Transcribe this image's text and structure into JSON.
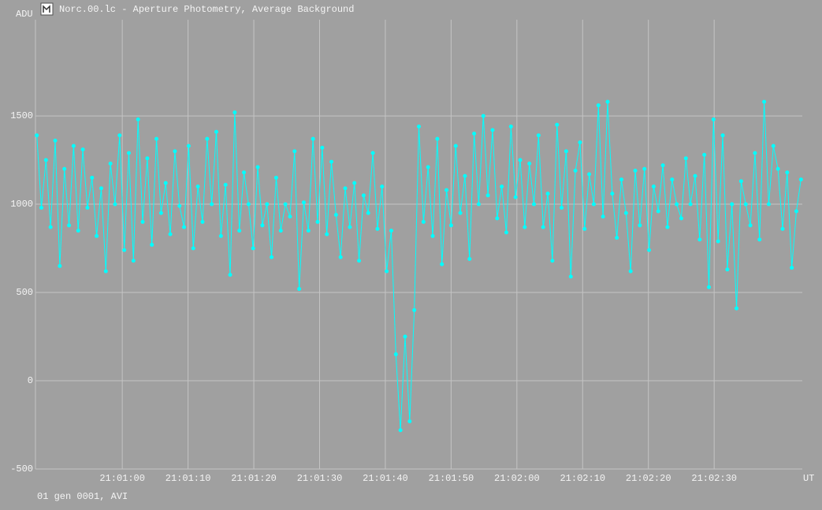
{
  "window_title": "Norc.00.lc - Aperture Photometry, Average Background",
  "status_text": "01 gen 0001, AVI",
  "chart_data": {
    "type": "line",
    "y_label": "ADU",
    "x_label": "UT",
    "color": "#00ffff",
    "markers": true,
    "grid": true,
    "xlim": [
      75646.8,
      75763.4
    ],
    "ylim": [
      -500,
      2045
    ],
    "yticks": [
      -500,
      0,
      500,
      1000,
      1500
    ],
    "xticks": [
      {
        "value": 75660,
        "label": "21:01:00"
      },
      {
        "value": 75670,
        "label": "21:01:10"
      },
      {
        "value": 75680,
        "label": "21:01:20"
      },
      {
        "value": 75690,
        "label": "21:01:30"
      },
      {
        "value": 75700,
        "label": "21:01:40"
      },
      {
        "value": 75710,
        "label": "21:01:50"
      },
      {
        "value": 75720,
        "label": "21:02:00"
      },
      {
        "value": 75730,
        "label": "21:02:10"
      },
      {
        "value": 75740,
        "label": "21:02:20"
      },
      {
        "value": 75750,
        "label": "21:02:30"
      }
    ],
    "x": [
      75647,
      75647.7,
      75648.4,
      75649.1,
      75649.8,
      75650.5,
      75651.2,
      75651.9,
      75652.6,
      75653.3,
      75654,
      75654.7,
      75655.4,
      75656.1,
      75656.8,
      75657.5,
      75658.2,
      75658.9,
      75659.6,
      75660.3,
      75661,
      75661.7,
      75662.4,
      75663.1,
      75663.8,
      75664.5,
      75665.2,
      75665.9,
      75666.6,
      75667.3,
      75668,
      75668.7,
      75669.4,
      75670.1,
      75670.8,
      75671.5,
      75672.2,
      75672.9,
      75673.6,
      75674.3,
      75675,
      75675.7,
      75676.4,
      75677.1,
      75677.8,
      75678.5,
      75679.2,
      75679.9,
      75680.6,
      75681.3,
      75682,
      75682.7,
      75683.4,
      75684.1,
      75684.8,
      75685.5,
      75686.2,
      75686.9,
      75687.6,
      75688.3,
      75689,
      75689.7,
      75690.4,
      75691.1,
      75691.8,
      75692.5,
      75693.2,
      75693.9,
      75694.6,
      75695.3,
      75696,
      75696.7,
      75697.4,
      75698.1,
      75698.8,
      75699.5,
      75700.2,
      75700.9,
      75701.6,
      75702.3,
      75703,
      75703.7,
      75704.4,
      75705.1,
      75705.8,
      75706.5,
      75707.2,
      75707.9,
      75708.6,
      75709.3,
      75710,
      75710.7,
      75711.4,
      75712.1,
      75712.8,
      75713.5,
      75714.2,
      75714.9,
      75715.6,
      75716.3,
      75717,
      75717.7,
      75718.4,
      75719.1,
      75719.8,
      75720.5,
      75721.2,
      75721.9,
      75722.6,
      75723.3,
      75724,
      75724.7,
      75725.4,
      75726.1,
      75726.8,
      75727.5,
      75728.2,
      75728.9,
      75729.6,
      75730.3,
      75731,
      75731.7,
      75732.4,
      75733.1,
      75733.8,
      75734.5,
      75735.2,
      75735.9,
      75736.6,
      75737.3,
      75738,
      75738.7,
      75739.4,
      75740.1,
      75740.8,
      75741.5,
      75742.2,
      75742.9,
      75743.6,
      75744.3,
      75745,
      75745.7,
      75746.4,
      75747.1,
      75747.8,
      75748.5,
      75749.2,
      75749.9,
      75750.6,
      75751.3,
      75752,
      75752.7,
      75753.4,
      75754.1,
      75754.8,
      75755.5,
      75756.2,
      75756.9,
      75757.6,
      75758.3,
      75759,
      75759.7,
      75760.4,
      75761.1,
      75761.8,
      75762.5,
      75763.2
    ],
    "values": [
      1390,
      980,
      1250,
      870,
      1360,
      650,
      1200,
      880,
      1330,
      850,
      1310,
      980,
      1150,
      820,
      1090,
      620,
      1230,
      1000,
      1390,
      740,
      1290,
      680,
      1480,
      900,
      1260,
      770,
      1370,
      950,
      1120,
      830,
      1300,
      990,
      870,
      1330,
      750,
      1100,
      900,
      1370,
      1000,
      1410,
      820,
      1110,
      600,
      1520,
      850,
      1180,
      1000,
      750,
      1210,
      880,
      1000,
      700,
      1150,
      850,
      1000,
      930,
      1300,
      520,
      1010,
      850,
      1370,
      900,
      1320,
      830,
      1240,
      940,
      700,
      1090,
      870,
      1120,
      680,
      1050,
      950,
      1290,
      860,
      1100,
      620,
      850,
      150,
      -280,
      250,
      -230,
      400,
      1440,
      900,
      1210,
      820,
      1370,
      660,
      1080,
      880,
      1330,
      950,
      1160,
      690,
      1400,
      1000,
      1500,
      1050,
      1420,
      920,
      1100,
      840,
      1440,
      1040,
      1250,
      870,
      1230,
      1000,
      1390,
      870,
      1060,
      680,
      1450,
      980,
      1300,
      590,
      1190,
      1350,
      860,
      1170,
      1000,
      1560,
      930,
      1580,
      1060,
      810,
      1140,
      950,
      620,
      1190,
      880,
      1200,
      740,
      1100,
      960,
      1220,
      870,
      1140,
      1000,
      920,
      1260,
      1000,
      1160,
      800,
      1280,
      530,
      1480,
      790,
      1390,
      630,
      1000,
      410,
      1130,
      1000,
      880,
      1290,
      800,
      1580,
      1000,
      1330,
      1200,
      860,
      1180,
      640,
      960,
      1140
    ]
  }
}
